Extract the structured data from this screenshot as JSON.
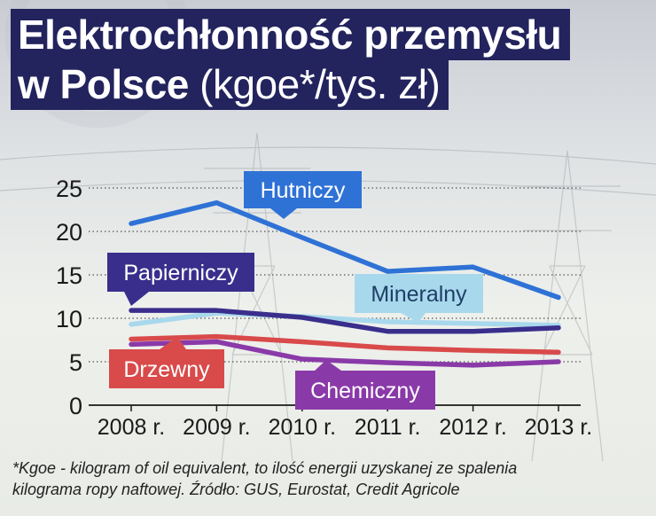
{
  "title": {
    "line1": "Elektrochłonność przemysłu",
    "line2_bold": "w Polsce",
    "line2_unit": "(kgoe*/tys. zł)"
  },
  "footnote": {
    "line1": "*Kgoe -  kilogram of oil equivalent, to ilość energii uzyskanej ze spalenia",
    "line2": "kilograma ropy naftowej. Źródło: GUS, Eurostat, Credit Agricole"
  },
  "chart_data": {
    "type": "line",
    "title": "Elektrochłonność przemysłu w Polsce (kgoe*/tys. zł)",
    "xlabel": "",
    "ylabel": "",
    "categories": [
      "2008 r.",
      "2009 r.",
      "2010 r.",
      "2011 r.",
      "2012 r.",
      "2013 r."
    ],
    "ylim": [
      0,
      25
    ],
    "yticks": [
      0,
      5,
      10,
      15,
      20,
      25
    ],
    "grid": "horizontal dotted",
    "legend": "inline labels",
    "series": [
      {
        "name": "Hutniczy",
        "color": "#2f72d6",
        "values": [
          20.9,
          23.3,
          19.3,
          15.4,
          15.9,
          12.4
        ]
      },
      {
        "name": "Papierniczy",
        "color": "#3a2e8c",
        "values": [
          10.9,
          10.9,
          10.1,
          8.5,
          8.5,
          8.9
        ]
      },
      {
        "name": "Mineralny",
        "color": "#a8d8ec",
        "values": [
          9.3,
          10.6,
          10.2,
          9.6,
          9.4,
          9.2
        ]
      },
      {
        "name": "Drzewny",
        "color": "#d94a4a",
        "values": [
          7.6,
          7.9,
          7.3,
          6.6,
          6.3,
          6.1
        ]
      },
      {
        "name": "Chemiczny",
        "color": "#8a3aa8",
        "values": [
          7.0,
          7.3,
          5.3,
          4.9,
          4.6,
          5.0
        ]
      }
    ]
  }
}
